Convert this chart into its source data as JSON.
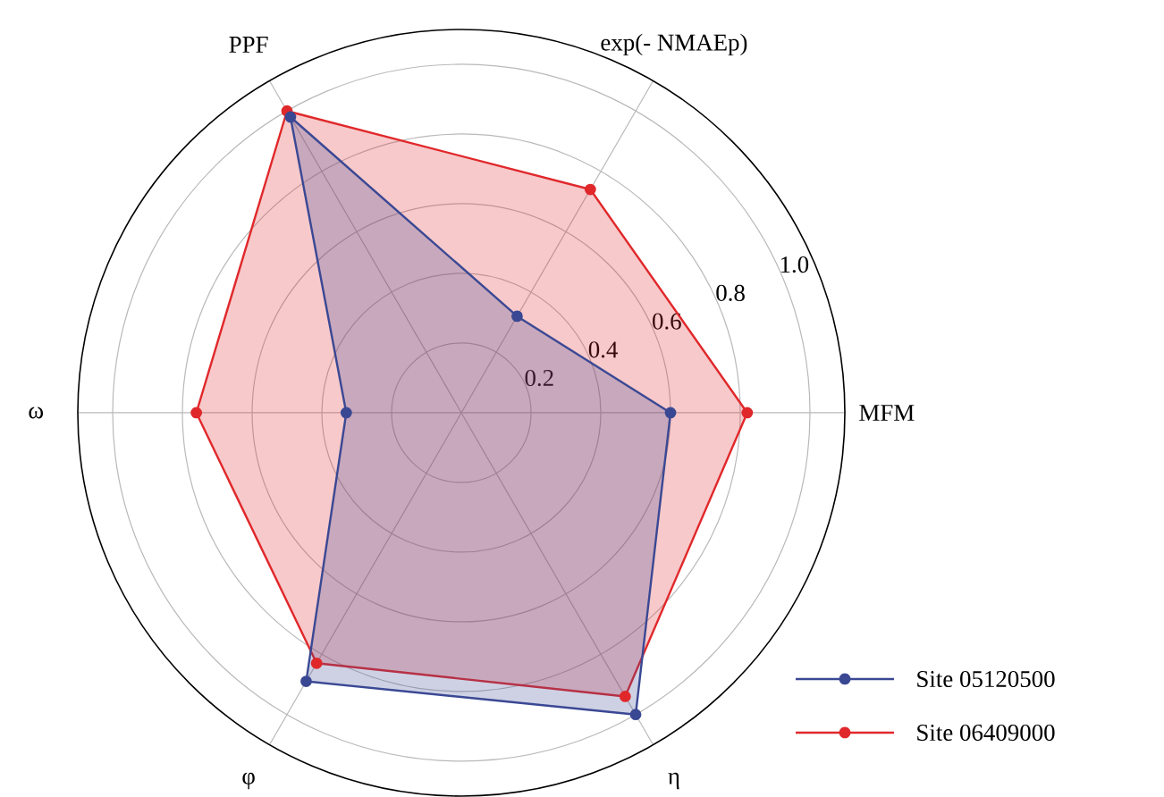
{
  "chart_data": {
    "type": "radar",
    "categories": [
      "exp(- NMAEp)",
      "MFM",
      "η",
      "φ",
      "ω",
      "PPF"
    ],
    "ylim": [
      0,
      1.1
    ],
    "yticks": [
      0.2,
      0.4,
      0.6,
      0.8,
      {
        "value": 1.0,
        "label": "1.0"
      }
    ],
    "grid": true,
    "legend": "bottom right",
    "marker": "circle",
    "series": [
      {
        "name": "Site 05120500",
        "color": "#3a4894",
        "values": [
          0.32,
          0.6,
          1.0,
          0.89,
          0.33,
          0.98
        ]
      },
      {
        "name": "Site 06409000",
        "color": "#e0282b",
        "values": [
          0.74,
          0.82,
          0.94,
          0.83,
          0.76,
          1.0
        ]
      }
    ]
  }
}
